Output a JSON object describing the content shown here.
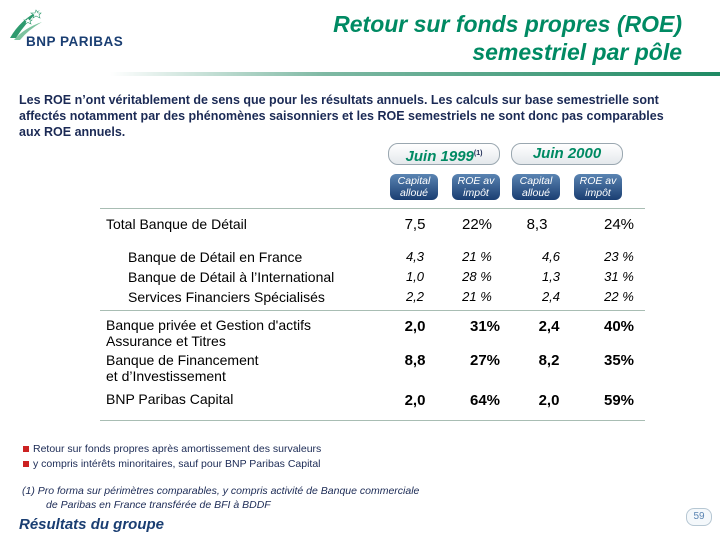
{
  "header": {
    "logo_text": "BNP PARIBAS",
    "title_line1": "Retour sur fonds propres (ROE)",
    "title_line2": "semestriel par pôle"
  },
  "intro": "Les ROE n’ont véritablement de sens que pour les résultats annuels. Les calculs sur base semestrielle sont affectés notamment par des phénomènes saisonniers et les ROE semestriels ne sont donc pas comparables aux ROE annuels.",
  "table": {
    "period1": "Juin 1999",
    "period1_note": "(1)",
    "period2": "Juin 2000",
    "sub_capital": "Capital alloué",
    "sub_roe": "ROE av impôt",
    "rows": [
      {
        "label": "Total Banque de Détail",
        "c1": "7,5",
        "r1": "22%",
        "c2": "8,3",
        "r2": "24%"
      },
      {
        "label": "Banque de Détail en France",
        "c1": "4,3",
        "r1": "21 %",
        "c2": "4,6",
        "r2": "23 %"
      },
      {
        "label": "Banque de Détail à l’International",
        "c1": "1,0",
        "r1": "28 %",
        "c2": "1,3",
        "r2": "31 %"
      },
      {
        "label": "Services Financiers Spécialisés",
        "c1": "2,2",
        "r1": "21 %",
        "c2": "2,4",
        "r2": "22 %"
      },
      {
        "label_l1": "Banque privée et Gestion d'actifs",
        "label_l2": "Assurance et Titres",
        "c1": "2,0",
        "r1": "31%",
        "c2": "2,4",
        "r2": "40%"
      },
      {
        "label_l1": "Banque de Financement",
        "label_l2": "et d’Investissement",
        "c1": "8,8",
        "r1": "27%",
        "c2": "8,2",
        "r2": "35%"
      },
      {
        "label": "BNP Paribas Capital",
        "c1": "2,0",
        "r1": "64%",
        "c2": "2,0",
        "r2": "59%"
      }
    ]
  },
  "bullets": [
    "Retour sur fonds propres après amortissement des survaleurs",
    "y compris intérêts minoritaires, sauf pour BNP Paribas Capital"
  ],
  "footnote_l1": "(1)  Pro forma sur périmètres comparables, y compris activité de Banque commerciale",
  "footnote_l2": "de Paribas en France transférée de BFI à BDDF",
  "bottom_title": "Résultats du groupe",
  "page_number": "59",
  "colors": {
    "green": "#008a63",
    "navy": "#1a3e72"
  }
}
